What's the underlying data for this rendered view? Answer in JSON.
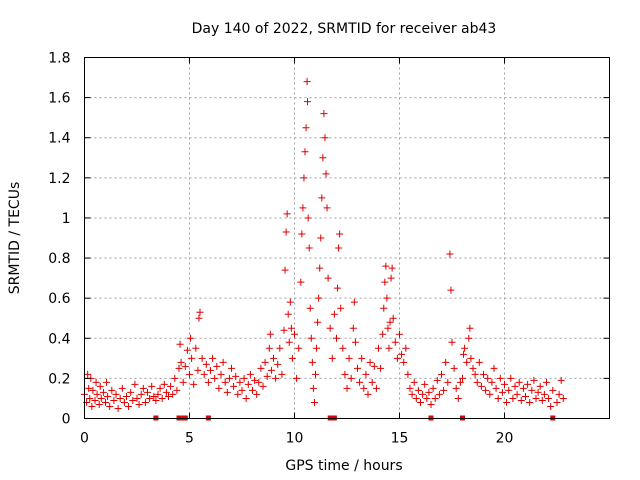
{
  "chart_data": {
    "type": "scatter",
    "title": "Day 140 of 2022, SRMTID for receiver ab43",
    "xlabel": "GPS time / hours",
    "ylabel": "SRMTID / TECUs",
    "xlim": [
      0,
      25
    ],
    "ylim": [
      0,
      1.8
    ],
    "xticks": [
      0,
      5,
      10,
      15,
      20
    ],
    "xtick_labels": [
      "0",
      "5",
      "10",
      "15",
      "20"
    ],
    "yticks": [
      0,
      0.2,
      0.4,
      0.6,
      0.8,
      1,
      1.2,
      1.4,
      1.6,
      1.8
    ],
    "ytick_labels": [
      "0",
      "0.2",
      "0.4",
      "0.6",
      "0.8",
      "1",
      "1.2",
      "1.4",
      "1.6",
      "1.8"
    ],
    "grid": true,
    "marker": "plus",
    "color": "#e00000",
    "series": [
      {
        "name": "SRMTID",
        "points": [
          [
            0.0,
            0.12
          ],
          [
            0.1,
            0.08
          ],
          [
            0.15,
            0.22
          ],
          [
            0.2,
            0.15
          ],
          [
            0.25,
            0.1
          ],
          [
            0.3,
            0.2
          ],
          [
            0.35,
            0.06
          ],
          [
            0.4,
            0.14
          ],
          [
            0.5,
            0.09
          ],
          [
            0.55,
            0.18
          ],
          [
            0.6,
            0.12
          ],
          [
            0.7,
            0.07
          ],
          [
            0.75,
            0.16
          ],
          [
            0.8,
            0.1
          ],
          [
            0.9,
            0.13
          ],
          [
            1.0,
            0.08
          ],
          [
            1.05,
            0.18
          ],
          [
            1.1,
            0.11
          ],
          [
            1.2,
            0.06
          ],
          [
            1.3,
            0.14
          ],
          [
            1.4,
            0.09
          ],
          [
            1.5,
            0.12
          ],
          [
            1.6,
            0.05
          ],
          [
            1.7,
            0.1
          ],
          [
            1.8,
            0.15
          ],
          [
            1.9,
            0.08
          ],
          [
            2.0,
            0.11
          ],
          [
            2.1,
            0.06
          ],
          [
            2.2,
            0.13
          ],
          [
            2.3,
            0.09
          ],
          [
            2.4,
            0.17
          ],
          [
            2.5,
            0.1
          ],
          [
            2.6,
            0.07
          ],
          [
            2.7,
            0.12
          ],
          [
            2.8,
            0.15
          ],
          [
            2.9,
            0.08
          ],
          [
            3.0,
            0.13
          ],
          [
            3.1,
            0.1
          ],
          [
            3.2,
            0.16
          ],
          [
            3.3,
            0.11
          ],
          [
            3.4,
            0.09
          ],
          [
            3.5,
            0.12
          ],
          [
            3.6,
            0.15
          ],
          [
            3.7,
            0.1
          ],
          [
            3.8,
            0.17
          ],
          [
            3.9,
            0.13
          ],
          [
            4.0,
            0.11
          ],
          [
            4.1,
            0.16
          ],
          [
            4.2,
            0.12
          ],
          [
            4.3,
            0.2
          ],
          [
            4.4,
            0.14
          ],
          [
            4.5,
            0.25
          ],
          [
            4.55,
            0.37
          ],
          [
            4.6,
            0.28
          ],
          [
            4.7,
            0.18
          ],
          [
            4.8,
            0.26
          ],
          [
            4.9,
            0.34
          ],
          [
            5.0,
            0.22
          ],
          [
            5.05,
            0.4
          ],
          [
            5.1,
            0.3
          ],
          [
            5.2,
            0.17
          ],
          [
            5.3,
            0.35
          ],
          [
            5.4,
            0.24
          ],
          [
            5.45,
            0.5
          ],
          [
            5.5,
            0.53
          ],
          [
            5.6,
            0.3
          ],
          [
            5.7,
            0.22
          ],
          [
            5.8,
            0.27
          ],
          [
            5.9,
            0.18
          ],
          [
            6.0,
            0.24
          ],
          [
            6.1,
            0.3
          ],
          [
            6.2,
            0.2
          ],
          [
            6.3,
            0.26
          ],
          [
            6.4,
            0.15
          ],
          [
            6.5,
            0.22
          ],
          [
            6.6,
            0.28
          ],
          [
            6.7,
            0.18
          ],
          [
            6.8,
            0.13
          ],
          [
            6.9,
            0.2
          ],
          [
            7.0,
            0.25
          ],
          [
            7.1,
            0.16
          ],
          [
            7.2,
            0.21
          ],
          [
            7.3,
            0.12
          ],
          [
            7.4,
            0.18
          ],
          [
            7.5,
            0.14
          ],
          [
            7.6,
            0.2
          ],
          [
            7.7,
            0.1
          ],
          [
            7.8,
            0.17
          ],
          [
            7.9,
            0.22
          ],
          [
            8.0,
            0.14
          ],
          [
            8.1,
            0.19
          ],
          [
            8.2,
            0.12
          ],
          [
            8.3,
            0.18
          ],
          [
            8.4,
            0.25
          ],
          [
            8.5,
            0.16
          ],
          [
            8.6,
            0.28
          ],
          [
            8.7,
            0.21
          ],
          [
            8.8,
            0.35
          ],
          [
            8.85,
            0.42
          ],
          [
            8.9,
            0.24
          ],
          [
            9.0,
            0.3
          ],
          [
            9.1,
            0.2
          ],
          [
            9.2,
            0.27
          ],
          [
            9.3,
            0.35
          ],
          [
            9.4,
            0.22
          ],
          [
            9.5,
            0.44
          ],
          [
            9.55,
            0.74
          ],
          [
            9.6,
            0.93
          ],
          [
            9.65,
            1.02
          ],
          [
            9.7,
            0.52
          ],
          [
            9.75,
            0.38
          ],
          [
            9.8,
            0.58
          ],
          [
            9.85,
            0.45
          ],
          [
            9.9,
            0.3
          ],
          [
            10.0,
            0.42
          ],
          [
            10.1,
            0.2
          ],
          [
            10.2,
            0.35
          ],
          [
            10.3,
            0.68
          ],
          [
            10.35,
            0.92
          ],
          [
            10.4,
            1.05
          ],
          [
            10.45,
            1.2
          ],
          [
            10.5,
            1.33
          ],
          [
            10.55,
            1.45
          ],
          [
            10.6,
            1.68
          ],
          [
            10.62,
            1.58
          ],
          [
            10.65,
            1.0
          ],
          [
            10.7,
            0.85
          ],
          [
            10.75,
            0.55
          ],
          [
            10.8,
            0.4
          ],
          [
            10.85,
            0.28
          ],
          [
            10.9,
            0.15
          ],
          [
            10.95,
            0.08
          ],
          [
            11.0,
            0.22
          ],
          [
            11.05,
            0.35
          ],
          [
            11.1,
            0.48
          ],
          [
            11.15,
            0.6
          ],
          [
            11.2,
            0.75
          ],
          [
            11.25,
            0.9
          ],
          [
            11.3,
            1.1
          ],
          [
            11.35,
            1.3
          ],
          [
            11.4,
            1.52
          ],
          [
            11.45,
            1.4
          ],
          [
            11.5,
            1.22
          ],
          [
            11.55,
            1.05
          ],
          [
            11.6,
            0.7
          ],
          [
            11.7,
            0.45
          ],
          [
            11.8,
            0.3
          ],
          [
            11.9,
            0.52
          ],
          [
            12.0,
            0.4
          ],
          [
            12.05,
            0.65
          ],
          [
            12.1,
            0.85
          ],
          [
            12.15,
            0.92
          ],
          [
            12.2,
            0.55
          ],
          [
            12.3,
            0.35
          ],
          [
            12.4,
            0.22
          ],
          [
            12.5,
            0.15
          ],
          [
            12.6,
            0.3
          ],
          [
            12.7,
            0.2
          ],
          [
            12.8,
            0.45
          ],
          [
            12.85,
            0.58
          ],
          [
            12.9,
            0.38
          ],
          [
            13.0,
            0.25
          ],
          [
            13.1,
            0.18
          ],
          [
            13.2,
            0.3
          ],
          [
            13.3,
            0.15
          ],
          [
            13.4,
            0.22
          ],
          [
            13.5,
            0.12
          ],
          [
            13.6,
            0.28
          ],
          [
            13.7,
            0.18
          ],
          [
            13.8,
            0.26
          ],
          [
            13.9,
            0.15
          ],
          [
            14.0,
            0.35
          ],
          [
            14.1,
            0.25
          ],
          [
            14.2,
            0.42
          ],
          [
            14.25,
            0.55
          ],
          [
            14.3,
            0.68
          ],
          [
            14.35,
            0.76
          ],
          [
            14.4,
            0.6
          ],
          [
            14.45,
            0.45
          ],
          [
            14.5,
            0.35
          ],
          [
            14.55,
            0.48
          ],
          [
            14.6,
            0.7
          ],
          [
            14.65,
            0.75
          ],
          [
            14.7,
            0.5
          ],
          [
            14.8,
            0.38
          ],
          [
            14.9,
            0.3
          ],
          [
            15.0,
            0.42
          ],
          [
            15.1,
            0.32
          ],
          [
            15.2,
            0.28
          ],
          [
            15.3,
            0.35
          ],
          [
            15.4,
            0.22
          ],
          [
            15.5,
            0.15
          ],
          [
            15.6,
            0.12
          ],
          [
            15.7,
            0.18
          ],
          [
            15.8,
            0.1
          ],
          [
            15.9,
            0.14
          ],
          [
            16.0,
            0.08
          ],
          [
            16.1,
            0.12
          ],
          [
            16.2,
            0.17
          ],
          [
            16.3,
            0.1
          ],
          [
            16.4,
            0.13
          ],
          [
            16.5,
            0.07
          ],
          [
            16.6,
            0.15
          ],
          [
            16.7,
            0.1
          ],
          [
            16.8,
            0.19
          ],
          [
            16.9,
            0.12
          ],
          [
            17.0,
            0.22
          ],
          [
            17.1,
            0.14
          ],
          [
            17.2,
            0.28
          ],
          [
            17.3,
            0.18
          ],
          [
            17.4,
            0.82
          ],
          [
            17.45,
            0.64
          ],
          [
            17.5,
            0.38
          ],
          [
            17.6,
            0.25
          ],
          [
            17.7,
            0.15
          ],
          [
            17.8,
            0.1
          ],
          [
            17.9,
            0.18
          ],
          [
            18.0,
            0.2
          ],
          [
            18.05,
            0.32
          ],
          [
            18.1,
            0.35
          ],
          [
            18.2,
            0.28
          ],
          [
            18.3,
            0.4
          ],
          [
            18.35,
            0.45
          ],
          [
            18.4,
            0.3
          ],
          [
            18.5,
            0.25
          ],
          [
            18.6,
            0.22
          ],
          [
            18.7,
            0.18
          ],
          [
            18.8,
            0.28
          ],
          [
            18.9,
            0.16
          ],
          [
            19.0,
            0.22
          ],
          [
            19.1,
            0.14
          ],
          [
            19.2,
            0.2
          ],
          [
            19.3,
            0.12
          ],
          [
            19.4,
            0.18
          ],
          [
            19.5,
            0.25
          ],
          [
            19.6,
            0.15
          ],
          [
            19.7,
            0.1
          ],
          [
            19.8,
            0.2
          ],
          [
            19.9,
            0.13
          ],
          [
            20.0,
            0.17
          ],
          [
            20.1,
            0.08
          ],
          [
            20.2,
            0.14
          ],
          [
            20.3,
            0.2
          ],
          [
            20.4,
            0.1
          ],
          [
            20.5,
            0.16
          ],
          [
            20.6,
            0.12
          ],
          [
            20.7,
            0.18
          ],
          [
            20.8,
            0.09
          ],
          [
            20.9,
            0.15
          ],
          [
            21.0,
            0.11
          ],
          [
            21.1,
            0.17
          ],
          [
            21.2,
            0.08
          ],
          [
            21.3,
            0.14
          ],
          [
            21.4,
            0.19
          ],
          [
            21.5,
            0.1
          ],
          [
            21.6,
            0.13
          ],
          [
            21.7,
            0.16
          ],
          [
            21.8,
            0.09
          ],
          [
            21.9,
            0.12
          ],
          [
            22.0,
            0.18
          ],
          [
            22.1,
            0.1
          ],
          [
            22.2,
            0.06
          ],
          [
            22.3,
            0.14
          ],
          [
            22.5,
            0.08
          ],
          [
            22.6,
            0.12
          ],
          [
            22.7,
            0.19
          ],
          [
            22.8,
            0.1
          ]
        ],
        "zero_marks": [
          3.4,
          4.5,
          4.7,
          4.8,
          5.9,
          11.7,
          11.9,
          16.5,
          18.0,
          22.3
        ]
      }
    ]
  }
}
